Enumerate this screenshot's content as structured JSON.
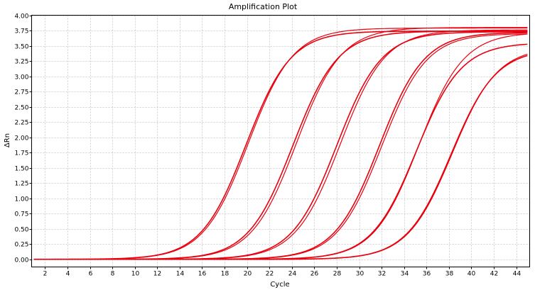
{
  "chart_data": {
    "type": "line",
    "title": "Amplification Plot",
    "xlabel": "Cycle",
    "ylabel": "ΔRn",
    "xlim": [
      0.8,
      45.2
    ],
    "ylim": [
      -0.125,
      4.0
    ],
    "x_ticks": [
      2,
      4,
      6,
      8,
      10,
      12,
      14,
      16,
      18,
      20,
      22,
      24,
      26,
      28,
      30,
      32,
      34,
      36,
      38,
      40,
      42,
      44
    ],
    "y_ticks": [
      "0.00",
      "0.25",
      "0.50",
      "0.75",
      "1.00",
      "1.25",
      "1.50",
      "1.75",
      "2.00",
      "2.25",
      "2.50",
      "2.75",
      "3.00",
      "3.25",
      "3.50",
      "3.75",
      "4.00"
    ],
    "grid": true,
    "line_color": "#e8000e",
    "curve_model": "sigmoid: dRn = plateau / (1 + exp(-(cycle - midpoint) / slope))",
    "x_range": [
      1,
      45
    ],
    "series": [
      {
        "midpoint": 19.9,
        "slope": 2.0,
        "plateau": 3.74
      },
      {
        "midpoint": 20.1,
        "slope": 2.0,
        "plateau": 3.79
      },
      {
        "midpoint": 24.1,
        "slope": 2.0,
        "plateau": 3.74
      },
      {
        "midpoint": 24.4,
        "slope": 2.0,
        "plateau": 3.8
      },
      {
        "midpoint": 28.0,
        "slope": 2.0,
        "plateau": 3.73
      },
      {
        "midpoint": 28.3,
        "slope": 2.0,
        "plateau": 3.76
      },
      {
        "midpoint": 31.8,
        "slope": 2.0,
        "plateau": 3.72
      },
      {
        "midpoint": 32.0,
        "slope": 2.0,
        "plateau": 3.7
      },
      {
        "midpoint": 35.1,
        "slope": 2.0,
        "plateau": 3.55
      },
      {
        "midpoint": 35.3,
        "slope": 2.0,
        "plateau": 3.72
      },
      {
        "midpoint": 38.2,
        "slope": 2.0,
        "plateau": 3.45
      },
      {
        "midpoint": 38.3,
        "slope": 2.0,
        "plateau": 3.48
      }
    ]
  }
}
